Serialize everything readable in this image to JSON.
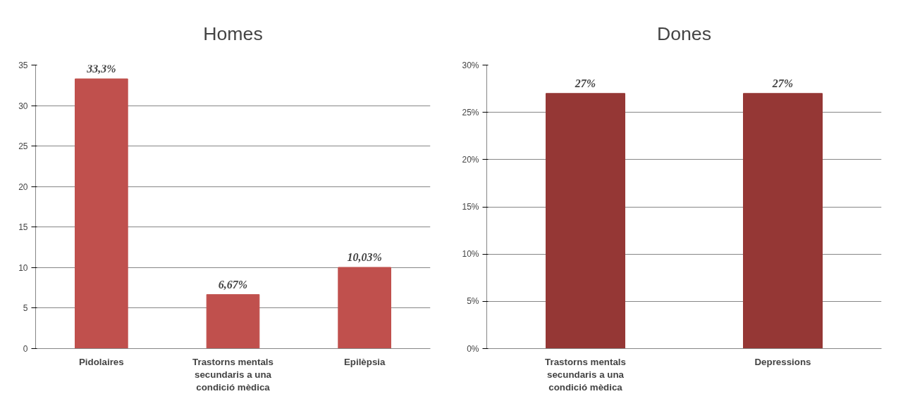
{
  "chart_data": [
    {
      "type": "bar",
      "title": "Homes",
      "categories": [
        "Pidolaires",
        "Trastorns mentals secundaris a una condició mèdica",
        "Epilèpsia"
      ],
      "values": [
        33.3,
        6.67,
        10.03
      ],
      "value_labels": [
        "33,3%",
        "6,67%",
        "10,03%"
      ],
      "color": "#c0504d",
      "ylim": [
        0,
        35
      ],
      "yticks": [
        0,
        5,
        10,
        15,
        20,
        25,
        30,
        35
      ],
      "grid": "y"
    },
    {
      "type": "bar",
      "title": "Dones",
      "categories": [
        "Trastorns mentals secundaris a una condició mèdica",
        "Depressions"
      ],
      "values": [
        27,
        27
      ],
      "value_labels": [
        "27%",
        "27%"
      ],
      "color": "#953735",
      "ylim": [
        0,
        30
      ],
      "yticks": [
        {
          "value": 0,
          "label": "0%"
        },
        {
          "value": 5,
          "label": "5%"
        },
        {
          "value": 10,
          "label": "10%"
        },
        {
          "value": 15,
          "label": "15%"
        },
        {
          "value": 20,
          "label": "20%"
        },
        {
          "value": 25,
          "label": "25%"
        },
        {
          "value": 30,
          "label": "30%"
        }
      ],
      "grid": "y"
    }
  ]
}
